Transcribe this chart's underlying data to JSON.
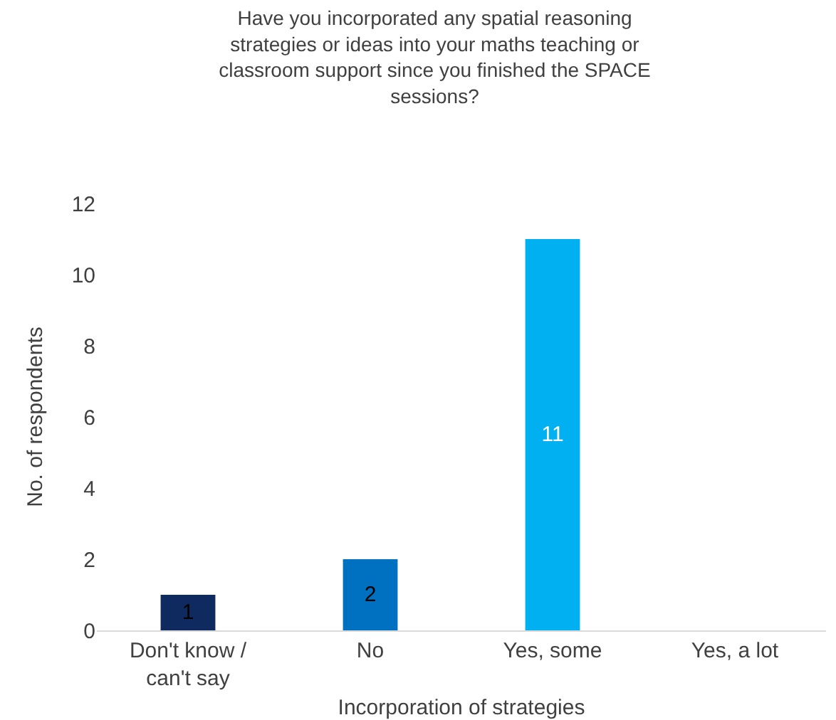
{
  "chart_data": {
    "type": "bar",
    "title": "Have you incorporated any spatial reasoning strategies or ideas into your maths teaching or classroom support since you finished the SPACE sessions?",
    "xlabel": "Incorporation of strategies",
    "ylabel": "No. of respondents",
    "categories": [
      "Don't know / can't say",
      "No",
      "Yes, some",
      "Yes, a lot"
    ],
    "values": [
      1,
      2,
      11,
      0
    ],
    "value_labels": [
      "1",
      "2",
      "11",
      null
    ],
    "colors": [
      "#0e2a5e",
      "#0070c0",
      "#00b0f0",
      "#00b0f0"
    ],
    "ylim": [
      0,
      12
    ],
    "yticks": [
      0,
      2,
      4,
      6,
      8,
      10,
      12
    ],
    "grid": false
  }
}
